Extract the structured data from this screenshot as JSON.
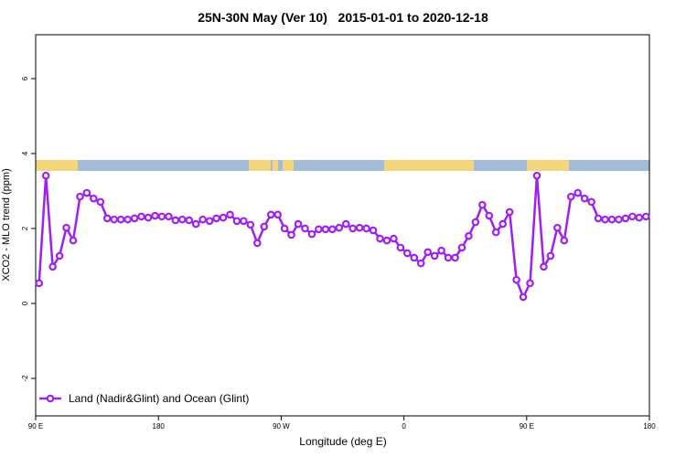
{
  "chart_data": {
    "type": "line",
    "title": "25N-30N May (Ver 10)   2015-01-01 to 2020-12-18",
    "x_label": "Longitude (deg E)",
    "y_label": "XCO2 - MLO trend (ppm)",
    "xlim": [
      90,
      540
    ],
    "ylim": [
      -3,
      7.17
    ],
    "xticks": [
      {
        "value": 90,
        "label": "90 E"
      },
      180,
      {
        "value": 270,
        "label": "90 W"
      },
      {
        "value": 360,
        "label": "0"
      },
      {
        "value": 450,
        "label": "90 E"
      },
      {
        "value": 540,
        "label": "180"
      }
    ],
    "yticks": [
      -2,
      0,
      2,
      4,
      6
    ],
    "legend": "bottom-left",
    "x": [
      92.5,
      97.5,
      102.5,
      107.5,
      112.5,
      117.5,
      122.5,
      127.5,
      132.5,
      137.5,
      142.5,
      147.5,
      152.5,
      157.5,
      162.5,
      167.5,
      172.5,
      177.5,
      182.5,
      187.5,
      192.5,
      197.5,
      202.5,
      207.5,
      212.5,
      217.5,
      222.5,
      227.5,
      232.5,
      237.5,
      242.5,
      247.5,
      252.5,
      257.5,
      262.5,
      267.5,
      272.5,
      277.5,
      282.5,
      287.5,
      292.5,
      297.5,
      302.5,
      307.5,
      312.5,
      317.5,
      322.5,
      327.5,
      332.5,
      337.5,
      342.5,
      347.5,
      352.5,
      357.5,
      362.5,
      367.5,
      372.5,
      377.5,
      382.5,
      387.5,
      392.5,
      397.5,
      402.5,
      407.5,
      412.5,
      417.5,
      422.5,
      427.5,
      432.5,
      437.5,
      442.5,
      447.5,
      452.5,
      457.5,
      462.5,
      467.5,
      472.5,
      477.5,
      482.5,
      487.5,
      492.5,
      497.5,
      502.5,
      507.5,
      512.5,
      517.5,
      522.5,
      527.5,
      532.5,
      537.5
    ],
    "series": [
      {
        "name": "Land (Nadir&Glint) and Ocean (Glint)",
        "color": "#a020f0",
        "values": [
          0.54,
          3.41,
          0.98,
          1.27,
          2.02,
          1.68,
          2.85,
          2.95,
          2.8,
          2.71,
          2.27,
          2.24,
          2.24,
          2.24,
          2.27,
          2.32,
          2.29,
          2.34,
          2.32,
          2.32,
          2.22,
          2.24,
          2.22,
          2.12,
          2.24,
          2.2,
          2.27,
          2.29,
          2.37,
          2.2,
          2.2,
          2.1,
          1.61,
          2.05,
          2.37,
          2.37,
          2.0,
          1.83,
          2.12,
          2.0,
          1.85,
          1.98,
          1.98,
          1.98,
          2.02,
          2.12,
          2.0,
          2.02,
          2.0,
          1.95,
          1.73,
          1.68,
          1.73,
          1.49,
          1.34,
          1.22,
          1.07,
          1.37,
          1.27,
          1.41,
          1.22,
          1.22,
          1.49,
          1.8,
          2.17,
          2.63,
          2.34,
          1.9,
          2.12,
          2.44,
          0.63,
          0.17,
          0.54,
          3.41,
          0.98,
          1.27,
          2.02,
          1.68,
          2.85,
          2.95,
          2.8,
          2.71,
          2.27,
          2.24,
          2.24,
          2.24,
          2.27,
          2.32,
          2.29,
          2.32
        ]
      }
    ]
  }
}
